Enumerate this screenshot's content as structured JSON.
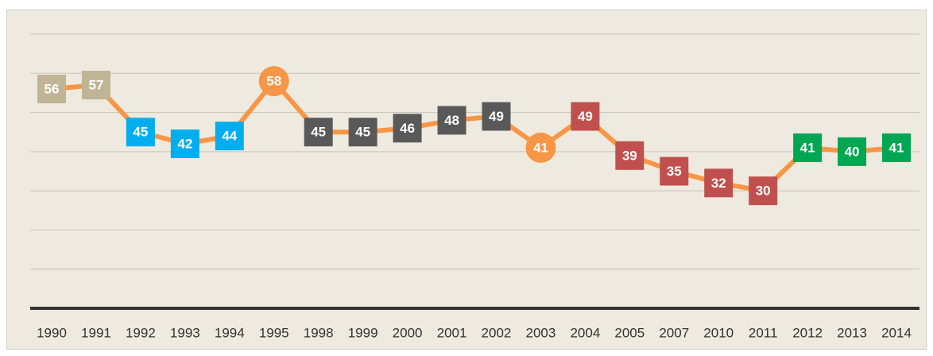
{
  "chart_data": {
    "type": "line",
    "categories": [
      "1990",
      "1991",
      "1992",
      "1993",
      "1994",
      "1995",
      "1998",
      "1999",
      "2000",
      "2001",
      "2002",
      "2003",
      "2004",
      "2005",
      "2007",
      "2010",
      "2011",
      "2012",
      "2013",
      "2014"
    ],
    "values": [
      56,
      57,
      45,
      42,
      44,
      58,
      45,
      45,
      46,
      48,
      49,
      41,
      49,
      39,
      35,
      32,
      30,
      41,
      40,
      41
    ],
    "color": "#f79646",
    "point_colors": [
      "#bfb595",
      "#bfb595",
      "#00aeef",
      "#00aeef",
      "#00aeef",
      "#f79646",
      "#595959",
      "#595959",
      "#595959",
      "#595959",
      "#595959",
      "#f79646",
      "#c0504d",
      "#c0504d",
      "#c0504d",
      "#c0504d",
      "#c0504d",
      "#00a651",
      "#00a651",
      "#00a651"
    ],
    "point_shapes": [
      "square",
      "square",
      "square",
      "square",
      "square",
      "circle",
      "square",
      "square",
      "square",
      "square",
      "square",
      "circle",
      "square",
      "square",
      "square",
      "square",
      "square",
      "square",
      "square",
      "square"
    ],
    "ylim": [
      0,
      70
    ],
    "yticks": [
      0,
      10,
      20,
      30,
      40,
      50,
      60,
      70
    ],
    "grid": true
  }
}
